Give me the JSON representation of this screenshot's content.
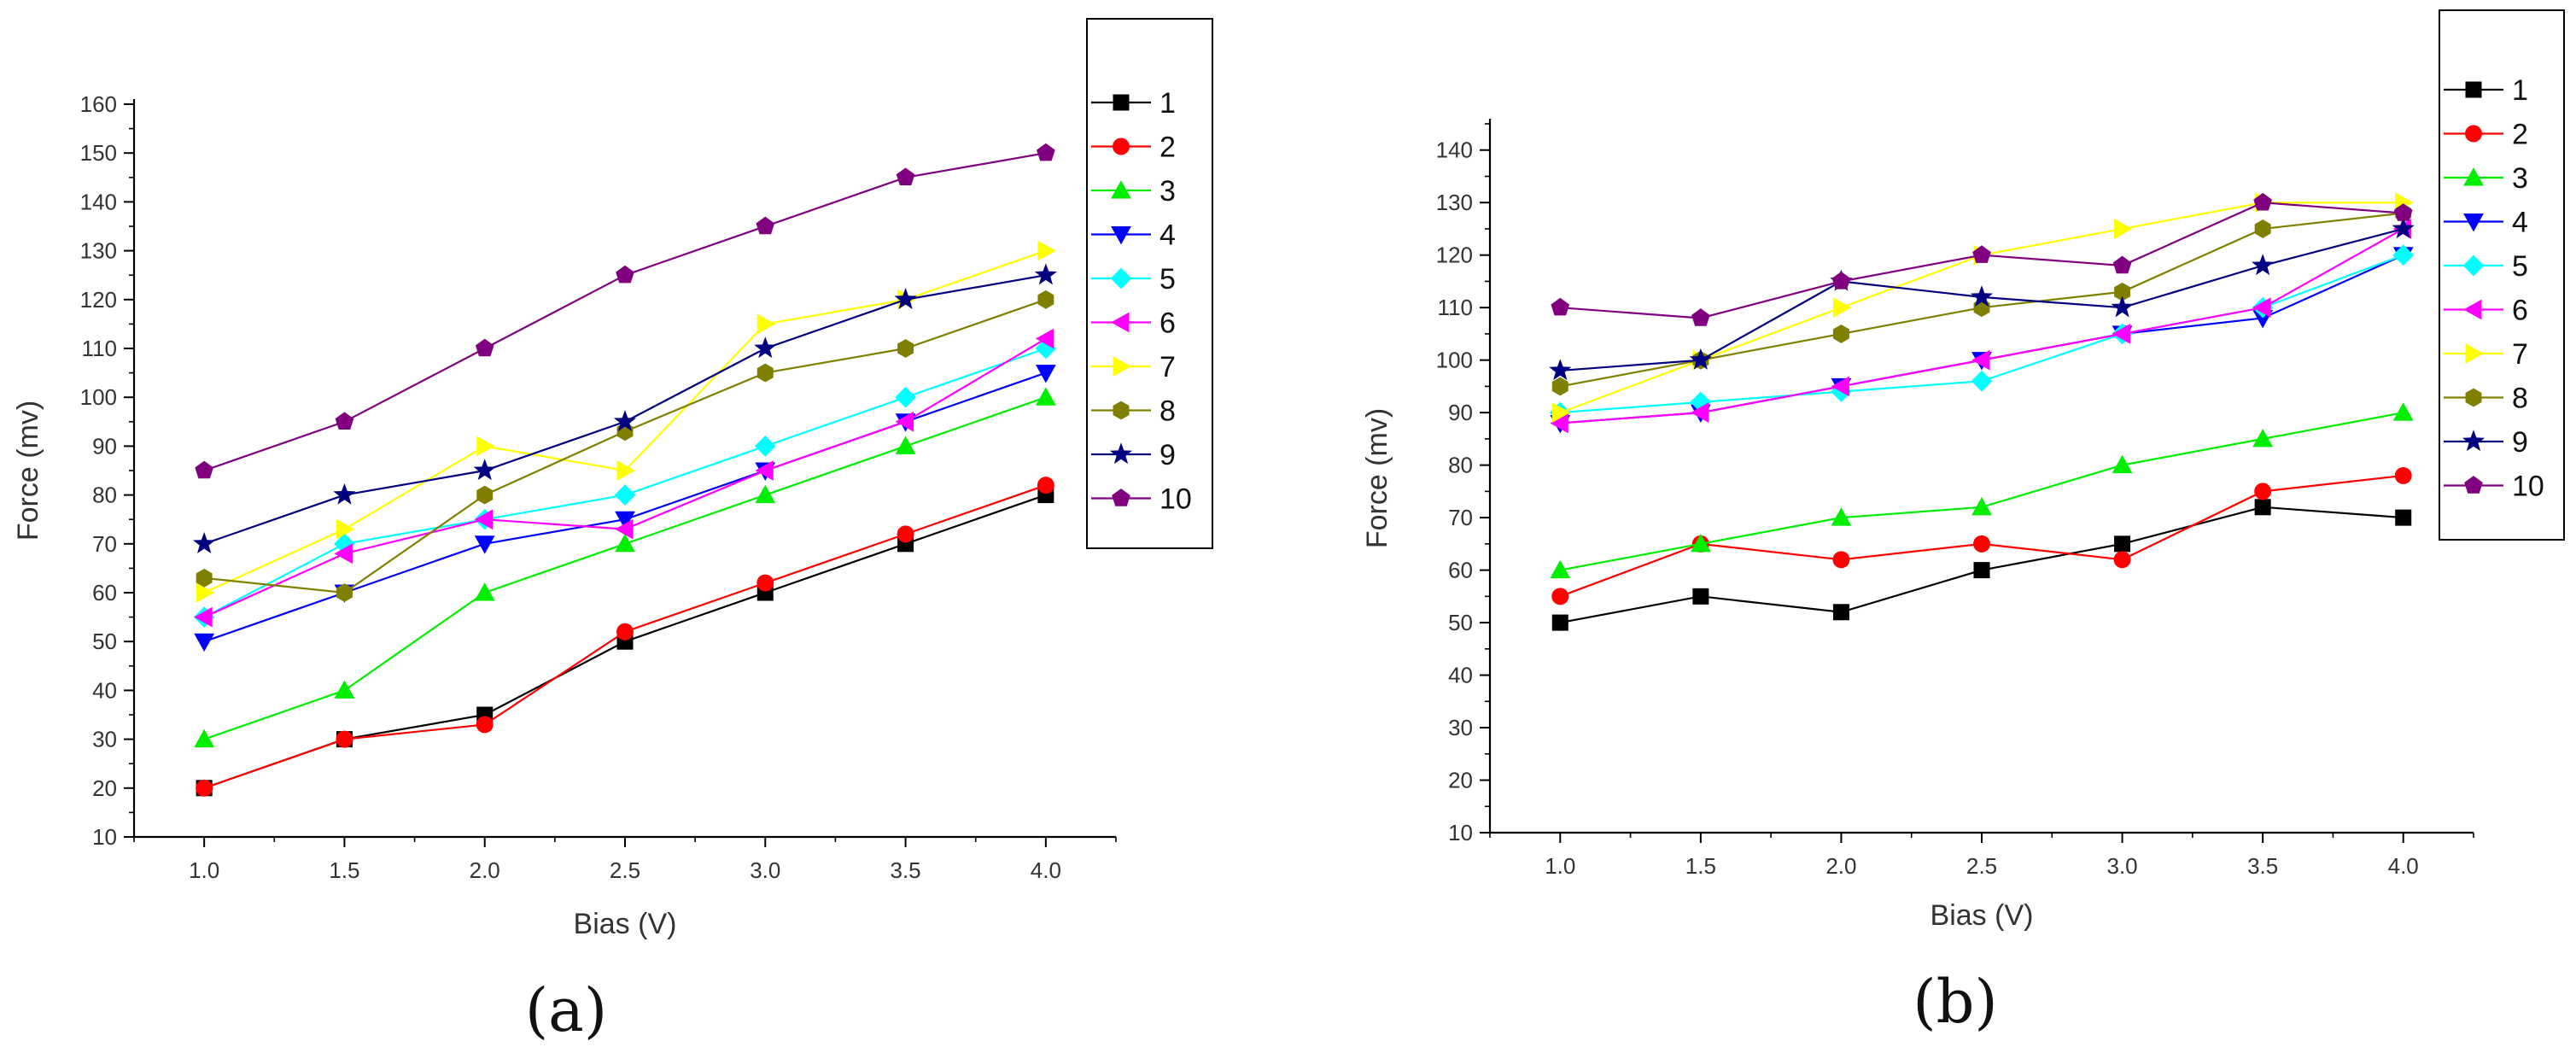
{
  "chart_data": [
    {
      "type": "line",
      "panel_label": "(a)",
      "xlabel": "Bias (V)",
      "ylabel": "Force (mv)",
      "x": [
        1.0,
        1.5,
        2.0,
        2.5,
        3.0,
        3.5,
        4.0
      ],
      "x_tick_labels": [
        "1.0",
        "1.5",
        "2.0",
        "2.5",
        "3.0",
        "3.5",
        "4.0"
      ],
      "xlim": [
        0.75,
        4.25
      ],
      "ylim": [
        10,
        160
      ],
      "y_ticks": [
        10,
        20,
        30,
        40,
        50,
        60,
        70,
        80,
        90,
        100,
        110,
        120,
        130,
        140,
        150,
        160
      ],
      "y_tick_labels": [
        "10",
        "20",
        "30",
        "40",
        "50",
        "60",
        "70",
        "80",
        "90",
        "100",
        "110",
        "120",
        "130",
        "140",
        "150",
        "160"
      ],
      "legend_position": "right-outside",
      "series": [
        {
          "name": "1",
          "color": "#000000",
          "marker": "square",
          "values": [
            20,
            30,
            35,
            50,
            60,
            70,
            80
          ]
        },
        {
          "name": "2",
          "color": "#ff0000",
          "marker": "circle",
          "values": [
            20,
            30,
            33,
            52,
            62,
            72,
            82
          ]
        },
        {
          "name": "3",
          "color": "#00ee00",
          "marker": "triangle-up",
          "values": [
            30,
            40,
            60,
            70,
            80,
            90,
            100
          ]
        },
        {
          "name": "4",
          "color": "#0000ff",
          "marker": "triangle-down",
          "values": [
            50,
            60,
            70,
            75,
            85,
            95,
            105
          ]
        },
        {
          "name": "5",
          "color": "#00ffff",
          "marker": "diamond",
          "values": [
            55,
            70,
            75,
            80,
            90,
            100,
            110
          ]
        },
        {
          "name": "6",
          "color": "#ff00ff",
          "marker": "triangle-left",
          "values": [
            55,
            68,
            75,
            73,
            85,
            95,
            112
          ]
        },
        {
          "name": "7",
          "color": "#ffff00",
          "marker": "triangle-right",
          "values": [
            60,
            73,
            90,
            85,
            115,
            120,
            130
          ]
        },
        {
          "name": "8",
          "color": "#808000",
          "marker": "hexagon",
          "values": [
            63,
            60,
            80,
            93,
            105,
            110,
            120
          ]
        },
        {
          "name": "9",
          "color": "#000080",
          "marker": "star",
          "values": [
            70,
            80,
            85,
            95,
            110,
            120,
            125
          ]
        },
        {
          "name": "10",
          "color": "#800080",
          "marker": "pentagon",
          "values": [
            85,
            95,
            110,
            125,
            135,
            145,
            150
          ]
        }
      ]
    },
    {
      "type": "line",
      "panel_label": "(b)",
      "xlabel": "Bias (V)",
      "ylabel": "Force (mv)",
      "x": [
        1.0,
        1.5,
        2.0,
        2.5,
        3.0,
        3.5,
        4.0
      ],
      "x_tick_labels": [
        "1.0",
        "1.5",
        "2.0",
        "2.5",
        "3.0",
        "3.5",
        "4.0"
      ],
      "xlim": [
        0.75,
        4.25
      ],
      "ylim": [
        10,
        145
      ],
      "y_ticks": [
        10,
        20,
        30,
        40,
        50,
        60,
        70,
        80,
        90,
        100,
        110,
        120,
        130,
        140
      ],
      "y_tick_labels": [
        "10",
        "20",
        "30",
        "40",
        "50",
        "60",
        "70",
        "80",
        "90",
        "100",
        "110",
        "120",
        "130",
        "140"
      ],
      "legend_position": "right-outside",
      "series": [
        {
          "name": "1",
          "color": "#000000",
          "marker": "square",
          "values": [
            50,
            55,
            52,
            60,
            65,
            72,
            70
          ]
        },
        {
          "name": "2",
          "color": "#ff0000",
          "marker": "circle",
          "values": [
            55,
            65,
            62,
            65,
            62,
            75,
            78
          ]
        },
        {
          "name": "3",
          "color": "#00ee00",
          "marker": "triangle-up",
          "values": [
            60,
            65,
            70,
            72,
            80,
            85,
            90
          ]
        },
        {
          "name": "4",
          "color": "#0000ff",
          "marker": "triangle-down",
          "values": [
            88,
            90,
            95,
            100,
            105,
            108,
            120
          ]
        },
        {
          "name": "5",
          "color": "#00ffff",
          "marker": "diamond",
          "values": [
            90,
            92,
            94,
            96,
            105,
            110,
            120
          ]
        },
        {
          "name": "6",
          "color": "#ff00ff",
          "marker": "triangle-left",
          "values": [
            88,
            90,
            95,
            100,
            105,
            110,
            125
          ]
        },
        {
          "name": "7",
          "color": "#ffff00",
          "marker": "triangle-right",
          "values": [
            90,
            100,
            110,
            120,
            125,
            130,
            130
          ]
        },
        {
          "name": "8",
          "color": "#808000",
          "marker": "hexagon",
          "values": [
            95,
            100,
            105,
            110,
            113,
            125,
            128
          ]
        },
        {
          "name": "9",
          "color": "#000080",
          "marker": "star",
          "values": [
            98,
            100,
            115,
            112,
            110,
            118,
            125
          ]
        },
        {
          "name": "10",
          "color": "#800080",
          "marker": "pentagon",
          "values": [
            110,
            108,
            115,
            120,
            118,
            130,
            128
          ]
        }
      ]
    }
  ]
}
